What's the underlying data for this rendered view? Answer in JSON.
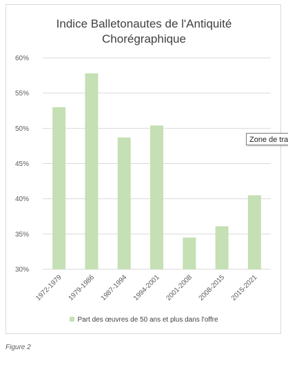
{
  "chart_data": {
    "type": "bar",
    "title_lines": [
      "Indice Balletonautes de l'Antiquité",
      "Chorégraphique"
    ],
    "categories": [
      "1972-1979",
      "1979-1986",
      "1987-1994",
      "1994-2001",
      "2001-2008",
      "2008-2015",
      "2015-2021"
    ],
    "series": [
      {
        "name": "Part des œuvres de 50 ans et plus dans l'offre",
        "values": [
          53.0,
          57.8,
          48.7,
          50.4,
          34.5,
          36.1,
          40.5
        ]
      }
    ],
    "y_ticks": [
      "30%",
      "35%",
      "40%",
      "45%",
      "50%",
      "55%",
      "60%"
    ],
    "ylim": [
      30,
      60
    ],
    "grid": true,
    "legend_position": "bottom",
    "bar_color": "#c5e0b4",
    "grid_color": "#d9d9d9"
  },
  "tooltip_text": "Zone de traçage",
  "caption": "Figure 2"
}
